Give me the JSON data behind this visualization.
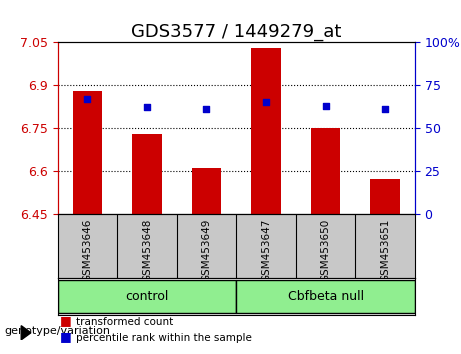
{
  "title": "GDS3577 / 1449279_at",
  "samples": [
    "GSM453646",
    "GSM453648",
    "GSM453649",
    "GSM453647",
    "GSM453650",
    "GSM453651"
  ],
  "bar_values": [
    6.88,
    6.73,
    6.61,
    7.03,
    6.75,
    6.57
  ],
  "percentile_values": [
    67,
    62,
    61,
    65,
    63,
    61
  ],
  "ylim_left": [
    6.45,
    7.05
  ],
  "ylim_right": [
    0,
    100
  ],
  "yticks_left": [
    6.45,
    6.6,
    6.75,
    6.9,
    7.05
  ],
  "yticks_right": [
    0,
    25,
    50,
    75,
    100
  ],
  "ytick_labels_left": [
    "6.45",
    "6.6",
    "6.75",
    "6.9",
    "7.05"
  ],
  "ytick_labels_right": [
    "0",
    "25",
    "50",
    "75",
    "100%"
  ],
  "bar_color": "#cc0000",
  "dot_color": "#0000cc",
  "bar_bottom": 6.45,
  "groups": [
    {
      "label": "control",
      "indices": [
        0,
        1,
        2
      ],
      "color": "#90ee90"
    },
    {
      "label": "Cbfbeta null",
      "indices": [
        3,
        4,
        5
      ],
      "color": "#90ee90"
    }
  ],
  "group_label_prefix": "genotype/variation",
  "legend_items": [
    {
      "label": "transformed count",
      "color": "#cc0000"
    },
    {
      "label": "percentile rank within the sample",
      "color": "#0000cc"
    }
  ],
  "grid_color": "black",
  "grid_linestyle": "dotted",
  "bg_color": "#e0e0e0",
  "plot_bg": "white",
  "label_area_color": "#c8c8c8",
  "group_box_color": "#90ee90",
  "title_fontsize": 13,
  "tick_fontsize": 9,
  "axis_color_left": "#cc0000",
  "axis_color_right": "#0000cc"
}
